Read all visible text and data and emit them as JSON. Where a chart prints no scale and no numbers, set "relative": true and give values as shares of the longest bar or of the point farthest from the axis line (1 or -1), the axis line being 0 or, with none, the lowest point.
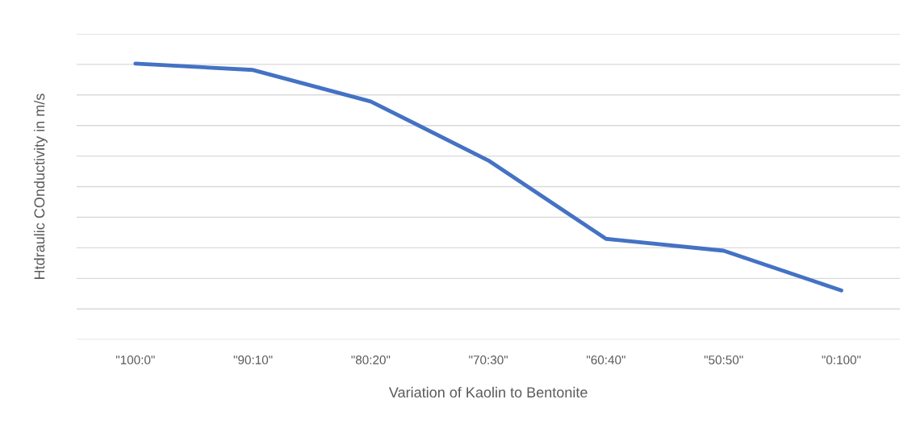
{
  "chart_data": {
    "type": "line",
    "relative": true,
    "xlabel": "Variation of Kaolin to Bentonite",
    "ylabel": "Htdraulic COnductivity in m/s",
    "categories": [
      "\"100:0\"",
      "\"90:10\"",
      "\"80:20\"",
      "\"70:30\"",
      "\"60:40\"",
      "\"50:50\"",
      "\"0:100\""
    ],
    "series": [
      {
        "color": "#4472c4",
        "values": [
          1,
          0.977,
          0.863,
          0.649,
          0.365,
          0.322,
          0.178
        ]
      }
    ],
    "grid": "y",
    "line_style": "solid",
    "marker": "none"
  }
}
